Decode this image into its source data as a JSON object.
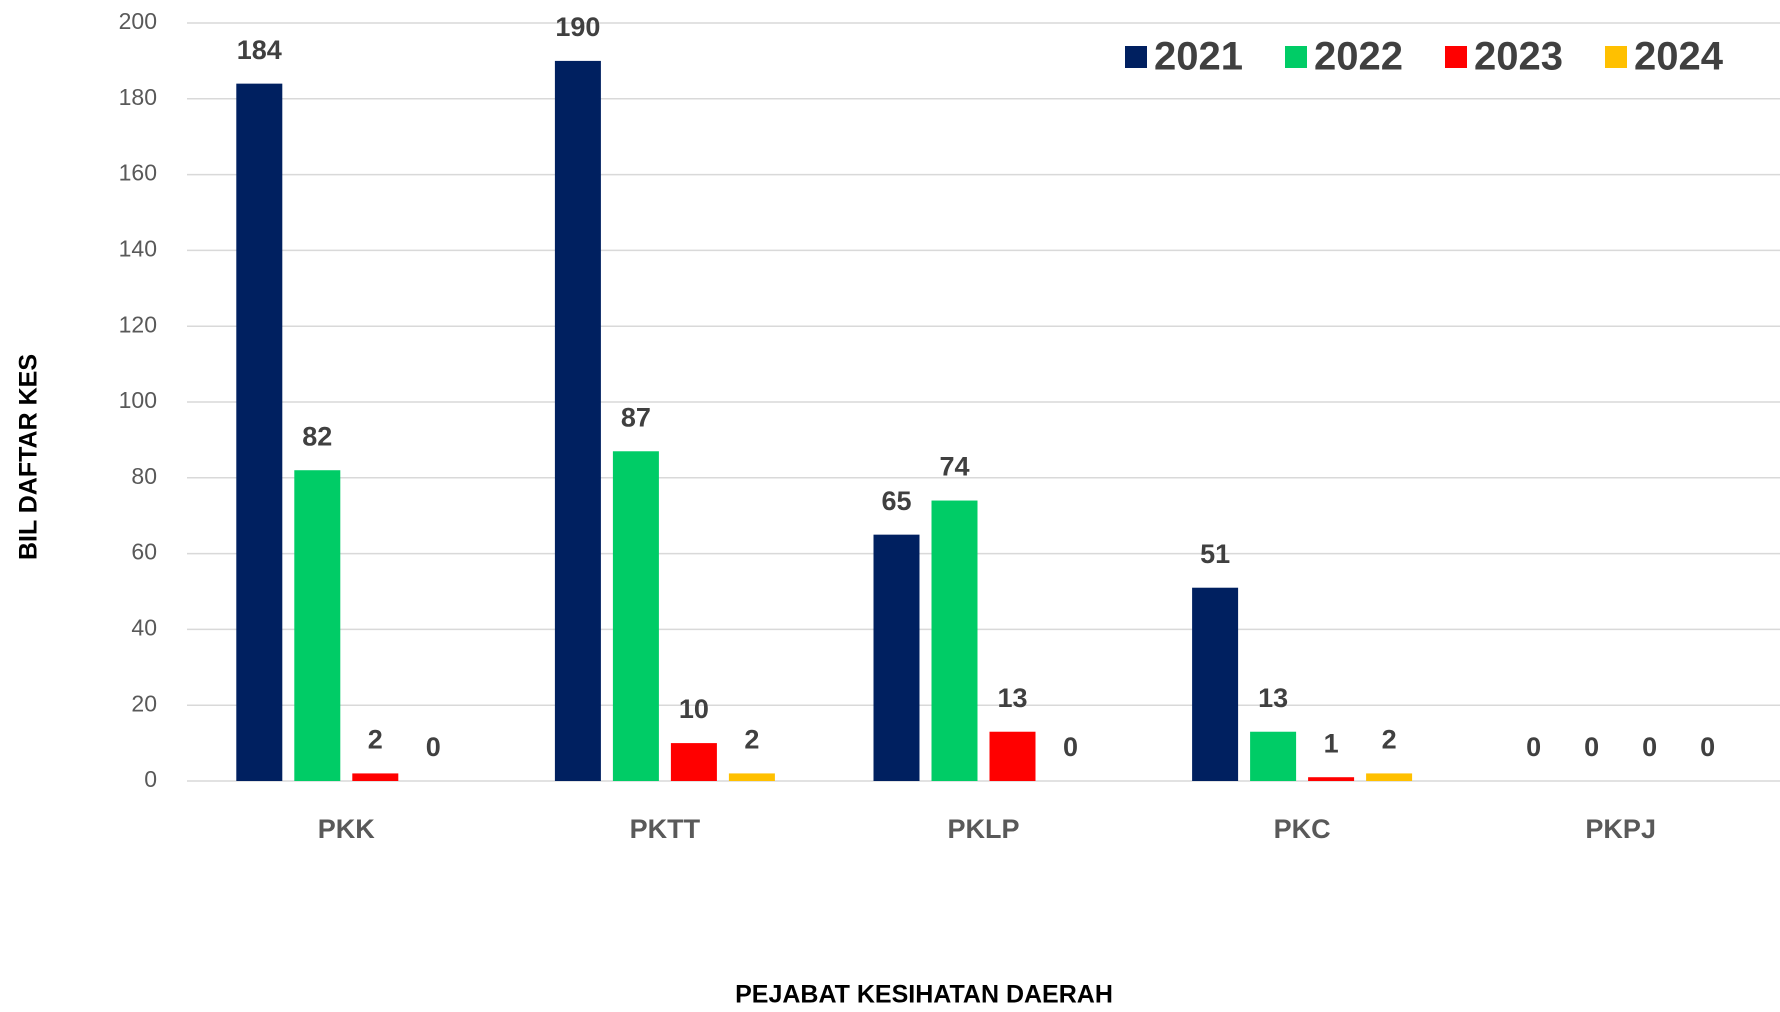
{
  "chart_data": {
    "type": "bar",
    "x_label": "PEJABAT KESIHATAN DAERAH",
    "y_label": "BIL DAFTAR KES",
    "categories": [
      "PKK",
      "PKTT",
      "PKLP",
      "PKC",
      "PKPJ"
    ],
    "series": [
      {
        "name": "2021",
        "color": "#002060",
        "values": [
          184,
          190,
          65,
          51,
          0
        ]
      },
      {
        "name": "2022",
        "color": "#00cc66",
        "values": [
          82,
          87,
          74,
          13,
          0
        ]
      },
      {
        "name": "2023",
        "color": "#ff0000",
        "values": [
          2,
          10,
          13,
          1,
          0
        ]
      },
      {
        "name": "2024",
        "color": "#ffc000",
        "values": [
          0,
          2,
          0,
          2,
          0
        ]
      }
    ],
    "ylim": [
      0,
      200
    ],
    "yticks": [
      0,
      20,
      40,
      60,
      80,
      100,
      120,
      140,
      160,
      180,
      200
    ],
    "grid": true,
    "legend": "top-right"
  }
}
